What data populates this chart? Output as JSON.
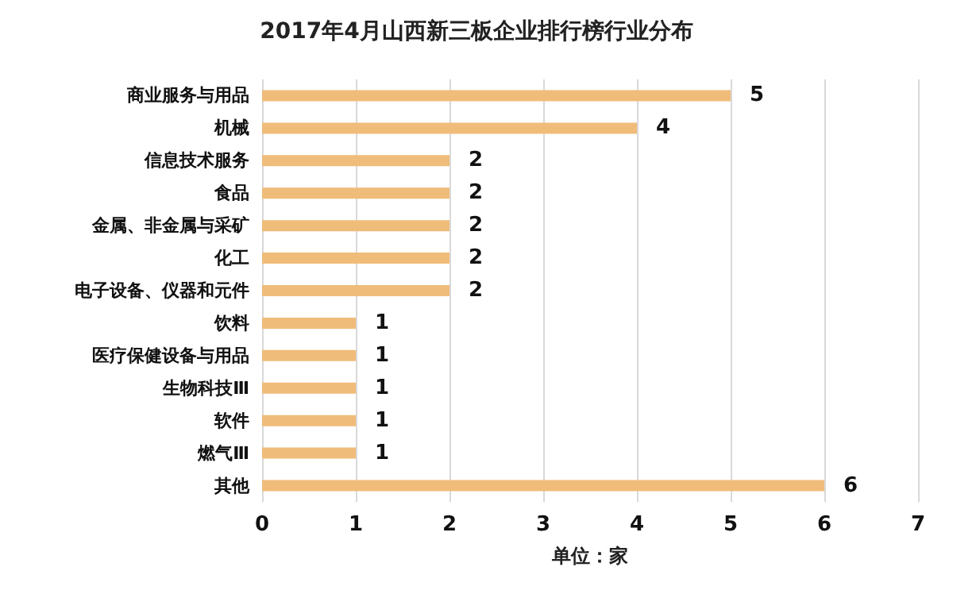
{
  "chart_data": {
    "type": "bar",
    "orientation": "horizontal",
    "title": "2017年4月山西新三板企业排行榜行业分布",
    "xlabel": "单位：家",
    "categories": [
      "商业服务与用品",
      "机械",
      "信息技术服务",
      "食品",
      "金属、非金属与采矿",
      "化工",
      "电子设备、仪器和元件",
      "饮料",
      "医疗保健设备与用品",
      "生物科技Ⅲ",
      "软件",
      "燃气Ⅲ",
      "其他"
    ],
    "values": [
      5,
      4,
      2,
      2,
      2,
      2,
      2,
      1,
      1,
      1,
      1,
      1,
      6
    ],
    "color": "#f0bc7a",
    "xlim": [
      0,
      7
    ],
    "xticks": [
      0,
      1,
      2,
      3,
      4,
      5,
      6,
      7
    ],
    "grid": "x",
    "data_labels": true
  }
}
